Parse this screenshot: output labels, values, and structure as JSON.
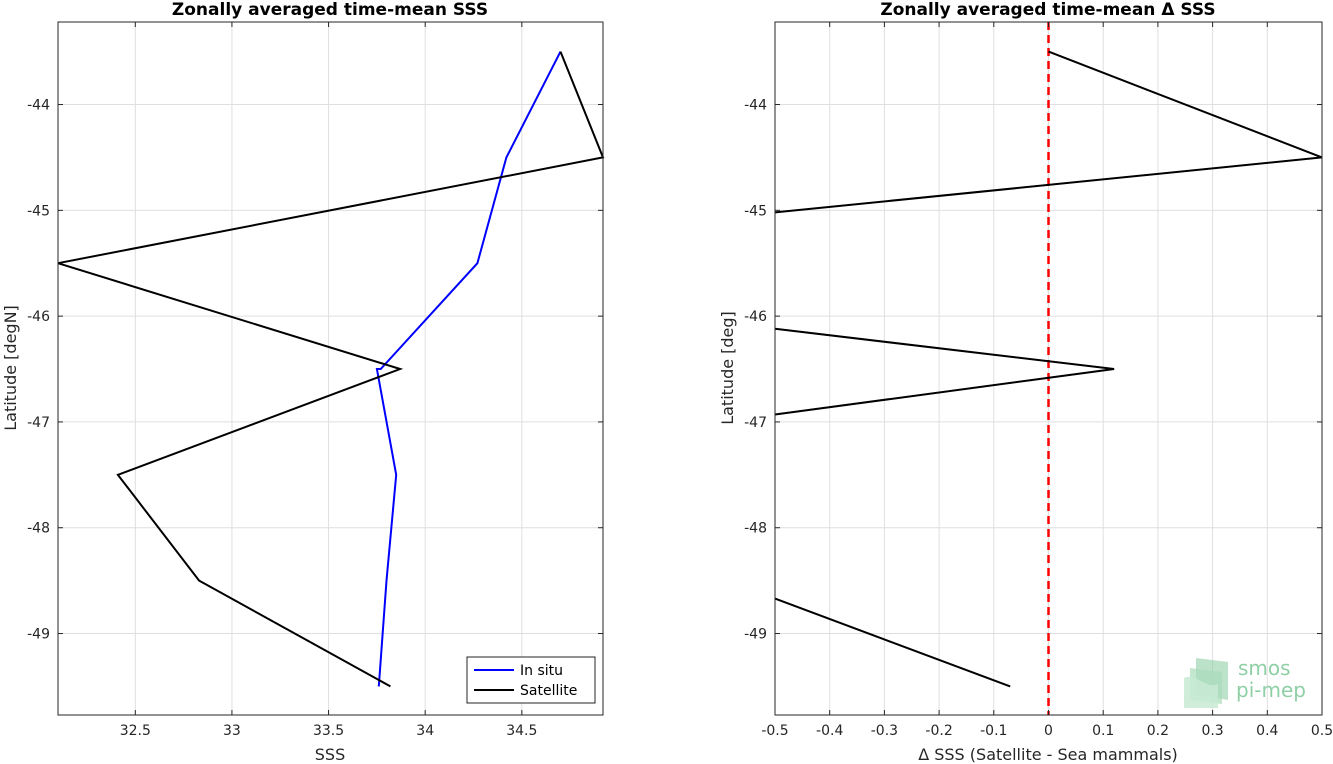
{
  "chart_data": [
    {
      "type": "line",
      "title": "Zonally averaged time-mean SSS",
      "xlabel": "SSS",
      "ylabel": "Latitude [degN]",
      "xlim": [
        32.1,
        34.92
      ],
      "ylim": [
        -49.77,
        -43.22
      ],
      "x_ticks": [
        "32.5",
        "33",
        "33.5",
        "34",
        "34.5"
      ],
      "x_tick_values": [
        32.5,
        33,
        33.5,
        34,
        34.5
      ],
      "y_ticks": [
        "-44",
        "-45",
        "-46",
        "-47",
        "-48",
        "-49"
      ],
      "y_tick_values": [
        -44,
        -45,
        -46,
        -47,
        -48,
        -49
      ],
      "grid": true,
      "legend_position": "bottom-right",
      "series": [
        {
          "name": "In situ",
          "color": "#0000ff",
          "points": [
            [
              34.7,
              -43.5
            ],
            [
              34.42,
              -44.5
            ],
            [
              34.27,
              -45.5
            ],
            [
              33.77,
              -46.5
            ],
            [
              33.75,
              -46.5
            ],
            [
              33.85,
              -47.5
            ],
            [
              33.8,
              -48.5
            ],
            [
              33.76,
              -49.5
            ]
          ]
        },
        {
          "name": "Satellite",
          "color": "#000000",
          "points": [
            [
              34.7,
              -43.5
            ],
            [
              34.92,
              -44.5
            ],
            [
              32.1,
              -45.5
            ],
            [
              33.87,
              -46.5
            ],
            [
              32.41,
              -47.5
            ],
            [
              32.83,
              -48.5
            ],
            [
              33.82,
              -49.5
            ]
          ]
        }
      ]
    },
    {
      "type": "line",
      "title": "Zonally averaged time-mean Δ SSS",
      "xlabel": "Δ SSS (Satellite - Sea mammals)",
      "ylabel": "Latitude [deg]",
      "xlim": [
        -0.5,
        0.5
      ],
      "ylim": [
        -49.77,
        -43.22
      ],
      "x_ticks": [
        "-0.5",
        "-0.4",
        "-0.3",
        "-0.2",
        "-0.1",
        "0",
        "0.1",
        "0.2",
        "0.3",
        "0.4",
        "0.5"
      ],
      "x_tick_values": [
        -0.5,
        -0.4,
        -0.3,
        -0.2,
        -0.1,
        0,
        0.1,
        0.2,
        0.3,
        0.4,
        0.5
      ],
      "y_ticks": [
        "-44",
        "-45",
        "-46",
        "-47",
        "-48",
        "-49"
      ],
      "y_tick_values": [
        -44,
        -45,
        -46,
        -47,
        -48,
        -49
      ],
      "grid": true,
      "reference_line": {
        "x": 0,
        "color": "#ff0000",
        "style": "dashed"
      },
      "series": [
        {
          "color": "#000000",
          "segments": [
            [
              [
                0.0,
                -43.5
              ],
              [
                0.5,
                -44.5
              ],
              [
                -0.5,
                -45.02
              ]
            ],
            [
              [
                -0.5,
                -46.12
              ],
              [
                0.12,
                -46.5
              ],
              [
                -0.5,
                -46.93
              ]
            ],
            [
              [
                -0.5,
                -48.67
              ],
              [
                -0.07,
                -49.5
              ]
            ]
          ]
        }
      ]
    }
  ],
  "logo": {
    "line1": "smos",
    "line2": "pi-mep",
    "color": "#8fcfa6"
  }
}
